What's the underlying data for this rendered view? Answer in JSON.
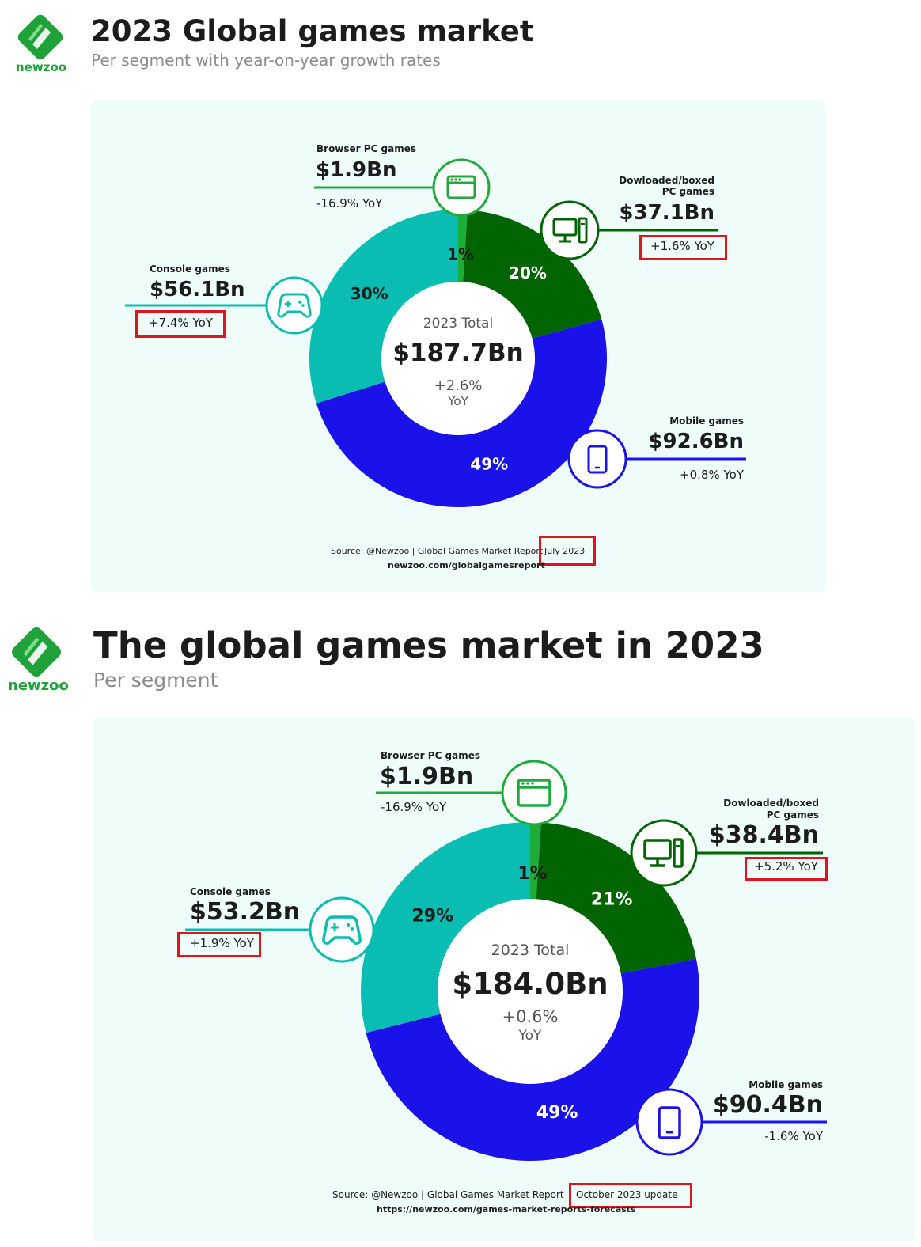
{
  "charts_meta": [
    {
      "logo_text": "newzoo",
      "title": "2023 Global games market",
      "subtitle": "Per segment with year-on-year growth rates",
      "center": {
        "label": "2023 Total",
        "value": "$187.7Bn",
        "yoy": "+2.6%",
        "yoy_unit": "YoY"
      },
      "source_prefix": "Source: @Newzoo | Global Games Market Report",
      "source_date": "July 2023",
      "source_url": "newzoo.com/globalgamesreport"
    },
    {
      "logo_text": "newzoo",
      "title": "The global games market in 2023",
      "subtitle": "Per segment",
      "center": {
        "label": "2023 Total",
        "value": "$184.0Bn",
        "yoy": "+0.6%",
        "yoy_unit": "YoY"
      },
      "source_prefix": "Source: @Newzoo | Global Games Market Report",
      "source_date": "October 2023 update",
      "source_url": "https://newzoo.com/games-market-reports-forecasts"
    }
  ],
  "chart_data": [
    {
      "type": "pie",
      "title": "2023 Global games market",
      "subtitle": "Per segment with year-on-year growth rates",
      "total": "$187.7Bn",
      "total_yoy": "+2.6%",
      "segments": [
        {
          "name": "Browser PC games",
          "name_line2": "",
          "value_bn": 1.9,
          "value_label": "$1.9Bn",
          "share": 1,
          "share_label": "1%",
          "yoy": "-16.9% YoY",
          "color": "#1faa3a",
          "icon": "browser-window-icon",
          "highlight_yoy": false
        },
        {
          "name": "Dowloaded/boxed",
          "name_line2": "PC games",
          "value_bn": 37.1,
          "value_label": "$37.1Bn",
          "share": 20,
          "share_label": "20%",
          "yoy": "+1.6% YoY",
          "color": "#006400",
          "icon": "desktop-pc-icon",
          "highlight_yoy": true
        },
        {
          "name": "Mobile games",
          "name_line2": "",
          "value_bn": 92.6,
          "value_label": "$92.6Bn",
          "share": 49,
          "share_label": "49%",
          "yoy": "+0.8% YoY",
          "color": "#1a12e8",
          "icon": "smartphone-icon",
          "highlight_yoy": false
        },
        {
          "name": "Console games",
          "name_line2": "",
          "value_bn": 56.1,
          "value_label": "$56.1Bn",
          "share": 30,
          "share_label": "30%",
          "yoy": "+7.4% YoY",
          "color": "#09bdb3",
          "icon": "gamepad-icon",
          "highlight_yoy": true
        }
      ]
    },
    {
      "type": "pie",
      "title": "The global games market in 2023",
      "subtitle": "Per segment",
      "total": "$184.0Bn",
      "total_yoy": "+0.6%",
      "segments": [
        {
          "name": "Browser PC games",
          "name_line2": "",
          "value_bn": 1.9,
          "value_label": "$1.9Bn",
          "share": 1,
          "share_label": "1%",
          "yoy": "-16.9% YoY",
          "color": "#1faa3a",
          "icon": "browser-window-icon",
          "highlight_yoy": false
        },
        {
          "name": "Dowloaded/boxed",
          "name_line2": "PC games",
          "value_bn": 38.4,
          "value_label": "$38.4Bn",
          "share": 21,
          "share_label": "21%",
          "yoy": "+5.2% YoY",
          "color": "#006400",
          "icon": "desktop-pc-icon",
          "highlight_yoy": true
        },
        {
          "name": "Mobile games",
          "name_line2": "",
          "value_bn": 90.4,
          "value_label": "$90.4Bn",
          "share": 49,
          "share_label": "49%",
          "yoy": "-1.6% YoY",
          "color": "#1a12e8",
          "icon": "smartphone-icon",
          "highlight_yoy": false
        },
        {
          "name": "Console games",
          "name_line2": "",
          "value_bn": 53.2,
          "value_label": "$53.2Bn",
          "share": 29,
          "share_label": "29%",
          "yoy": "+1.9% YoY",
          "color": "#09bdb3",
          "icon": "gamepad-icon",
          "highlight_yoy": true
        }
      ]
    }
  ]
}
